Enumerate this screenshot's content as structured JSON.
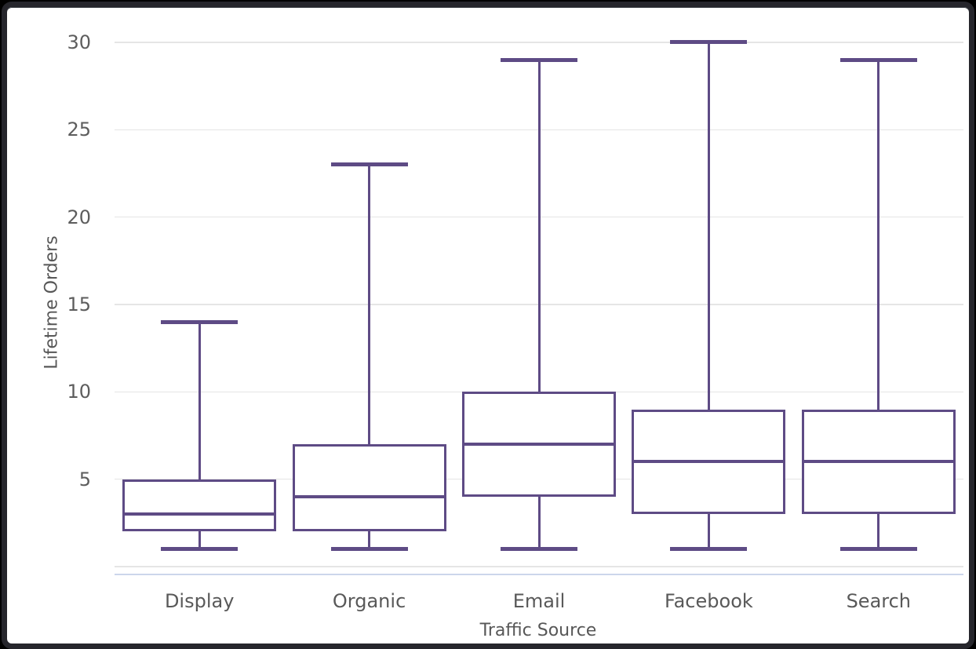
{
  "window": {
    "background": "#000000",
    "frame_border_color": "#26262c",
    "card_background": "#ffffff"
  },
  "chart_data": {
    "type": "boxplot",
    "title": "",
    "xlabel": "Traffic Source",
    "ylabel": "Lifetime Orders",
    "categories": [
      "Display",
      "Organic",
      "Email",
      "Facebook",
      "Search"
    ],
    "series": [
      {
        "name": "Lifetime Orders",
        "boxes": [
          {
            "category": "Display",
            "min": 1,
            "q1": 2,
            "median": 3,
            "q3": 5,
            "max": 14
          },
          {
            "category": "Organic",
            "min": 1,
            "q1": 2,
            "median": 4,
            "q3": 7,
            "max": 23
          },
          {
            "category": "Email",
            "min": 1,
            "q1": 4,
            "median": 7,
            "q3": 10,
            "max": 29
          },
          {
            "category": "Facebook",
            "min": 1,
            "q1": 3,
            "median": 6,
            "q3": 9,
            "max": 30
          },
          {
            "category": "Search",
            "min": 1,
            "q1": 3,
            "median": 6,
            "q3": 9,
            "max": 29
          }
        ]
      }
    ],
    "yticks": [
      5,
      10,
      15,
      20,
      25,
      30
    ],
    "ylim": [
      0,
      30.5
    ],
    "grid": true,
    "legend": false,
    "colors": {
      "box_stroke": "#5e4b85",
      "gridline": "#e5e5e5",
      "axis_line": "#ccd6eb",
      "label_text": "#5a5a5a"
    }
  }
}
